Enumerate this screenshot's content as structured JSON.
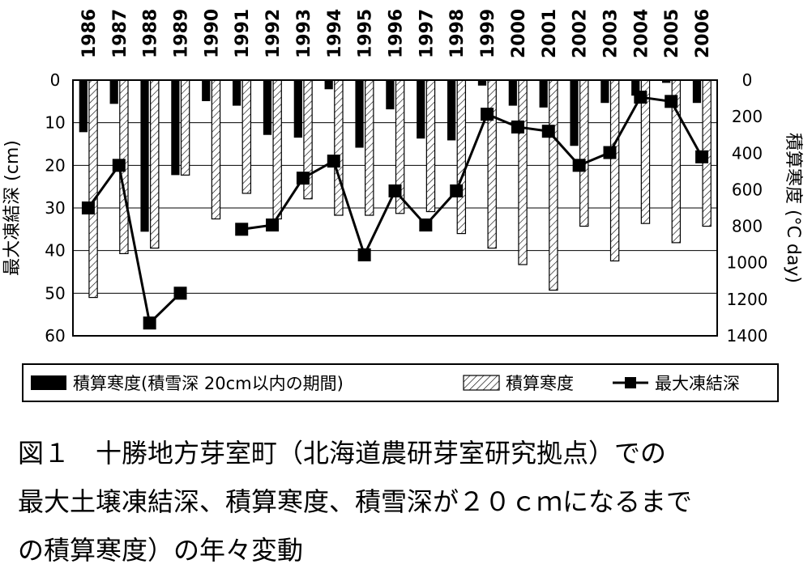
{
  "chart_data": {
    "type": "bar+line",
    "categories": [
      "1986",
      "1987",
      "1988",
      "1989",
      "1990",
      "1991",
      "1992",
      "1993",
      "1994",
      "1995",
      "1996",
      "1997",
      "1998",
      "1999",
      "2000",
      "2001",
      "2002",
      "2003",
      "2004",
      "2005",
      "2006"
    ],
    "series": [
      {
        "name": "積算寒度(積雪深 20cm以内の期間)",
        "kind": "bar",
        "axis": "right",
        "values": [
          285,
          130,
          830,
          520,
          115,
          140,
          300,
          315,
          50,
          370,
          160,
          320,
          330,
          30,
          140,
          150,
          360,
          125,
          85,
          15,
          125
        ]
      },
      {
        "name": "積算寒度",
        "kind": "bar-hatched",
        "axis": "right",
        "values": [
          1190,
          950,
          920,
          520,
          760,
          620,
          760,
          650,
          740,
          740,
          730,
          720,
          840,
          920,
          1010,
          1150,
          800,
          990,
          785,
          890,
          800
        ]
      },
      {
        "name": "最大凍結深",
        "kind": "line",
        "axis": "left",
        "values": [
          30,
          20,
          57,
          50,
          null,
          35,
          34,
          23,
          19,
          41,
          26,
          34,
          26,
          8,
          11,
          12,
          20,
          17,
          4,
          5,
          18
        ]
      }
    ],
    "ylabel_left": "最大凍結深 (cm)",
    "ylim_left": [
      0,
      60
    ],
    "yticks_left": [
      "0",
      "10",
      "20",
      "30",
      "40",
      "50",
      "60"
    ],
    "ylabel_right": "積算寒度 (°C day)",
    "ylim_right": [
      0,
      1400
    ],
    "yticks_right": [
      "0",
      "200",
      "400",
      "600",
      "800",
      "1000",
      "1200",
      "1400"
    ],
    "y_inverted": true,
    "grid": "horizontal",
    "legend_position": "bottom"
  },
  "caption": {
    "line1": "図１　十勝地方芽室町（北海道農研芽室研究拠点）での",
    "line2": "最大土壌凍結深、積算寒度、積雪深が２０ｃｍになるまで",
    "line3": "の積算寒度）の年々変動"
  }
}
